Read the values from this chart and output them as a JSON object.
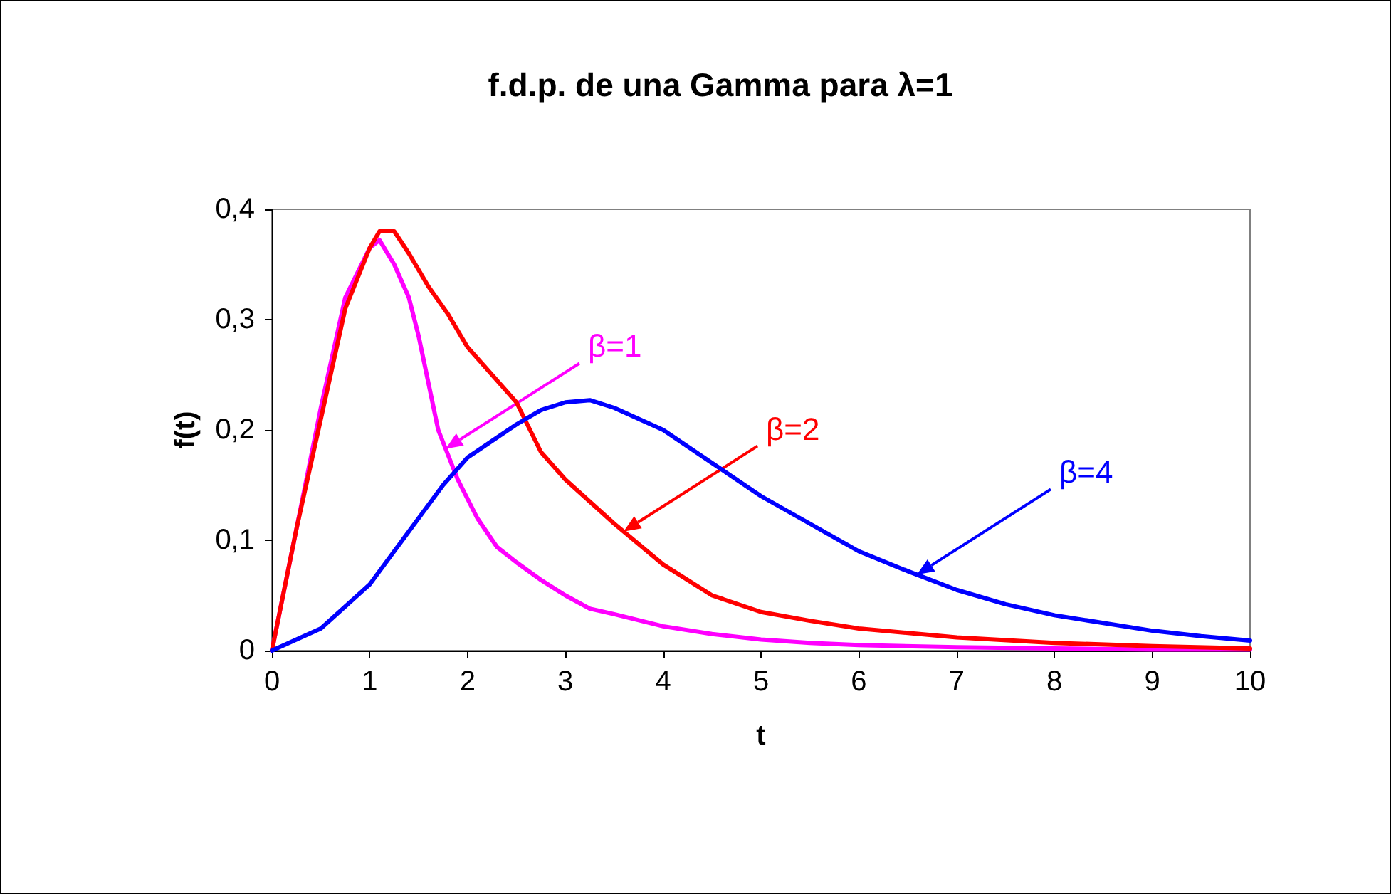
{
  "chart_data": {
    "type": "line",
    "title": "f.d.p. de una Gamma para λ=1",
    "xlabel": "t",
    "ylabel": "f(t)",
    "xlim": [
      0,
      10
    ],
    "xticks": [
      0,
      1,
      2,
      3,
      4,
      5,
      6,
      7,
      8,
      9,
      10
    ],
    "ylim": [
      0,
      0.4
    ],
    "yticks": [
      {
        "value": 0,
        "label": "0"
      },
      {
        "value": 0.1,
        "label": "0,1"
      },
      {
        "value": 0.2,
        "label": "0,2"
      },
      {
        "value": 0.3,
        "label": "0,3"
      },
      {
        "value": 0.4,
        "label": "0,4"
      }
    ],
    "grid": false,
    "legend": false,
    "marker": "none",
    "line_style": "solid",
    "series": [
      {
        "name": "β=1",
        "color": "#ff00ff",
        "x": [
          0,
          0.25,
          0.5,
          0.75,
          1,
          1.1,
          1.25,
          1.4,
          1.5,
          1.7,
          1.9,
          2.1,
          2.3,
          2.5,
          2.75,
          3,
          3.25,
          3.5,
          4,
          4.5,
          5,
          5.5,
          6,
          7,
          8,
          9,
          10
        ],
        "values": [
          0,
          0.11,
          0.22,
          0.32,
          0.365,
          0.372,
          0.35,
          0.32,
          0.285,
          0.2,
          0.155,
          0.12,
          0.094,
          0.08,
          0.064,
          0.05,
          0.038,
          0.033,
          0.022,
          0.015,
          0.01,
          0.007,
          0.005,
          0.003,
          0.002,
          0.001,
          0.001
        ]
      },
      {
        "name": "β=2",
        "color": "#ff0000",
        "x": [
          0,
          0.25,
          0.5,
          0.75,
          1,
          1.1,
          1.25,
          1.4,
          1.6,
          1.8,
          2,
          2.5,
          2.75,
          3,
          3.5,
          4,
          4.5,
          5,
          5.5,
          6,
          7,
          8,
          9,
          10
        ],
        "values": [
          0,
          0.11,
          0.21,
          0.31,
          0.365,
          0.38,
          0.38,
          0.36,
          0.33,
          0.305,
          0.275,
          0.225,
          0.18,
          0.155,
          0.115,
          0.078,
          0.05,
          0.035,
          0.027,
          0.02,
          0.012,
          0.007,
          0.004,
          0.002
        ]
      },
      {
        "name": "β=4",
        "color": "#0000ff",
        "x": [
          0,
          0.5,
          1,
          1.25,
          1.5,
          1.75,
          2,
          2.25,
          2.5,
          2.75,
          3,
          3.25,
          3.5,
          4,
          4.5,
          5,
          5.5,
          6,
          6.5,
          7,
          7.5,
          8,
          8.5,
          9,
          9.5,
          10
        ],
        "values": [
          0,
          0.02,
          0.06,
          0.09,
          0.12,
          0.15,
          0.175,
          0.19,
          0.205,
          0.218,
          0.225,
          0.227,
          0.22,
          0.2,
          0.17,
          0.14,
          0.115,
          0.09,
          0.072,
          0.055,
          0.042,
          0.032,
          0.025,
          0.018,
          0.013,
          0.009
        ]
      }
    ]
  }
}
